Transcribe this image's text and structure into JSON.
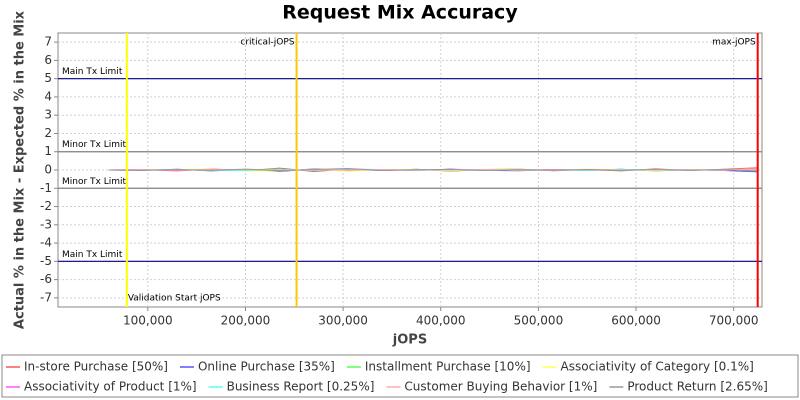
{
  "chart_data": {
    "type": "line",
    "title": "Request Mix Accuracy",
    "x_label": "jOPS",
    "y_label": "Actual % in the Mix - Expected % in the Mix",
    "xlim": [
      8000,
      729000
    ],
    "ylim": [
      -7.5,
      7.5
    ],
    "xticks": [
      {
        "value": 100000,
        "label": "100,000"
      },
      {
        "value": 200000,
        "label": "200,000"
      },
      {
        "value": 300000,
        "label": "300,000"
      },
      {
        "value": 400000,
        "label": "400,000"
      },
      {
        "value": 500000,
        "label": "500,000"
      },
      {
        "value": 600000,
        "label": "600,000"
      },
      {
        "value": 700000,
        "label": "700,000"
      }
    ],
    "yticks": [
      -7,
      -6,
      -5,
      -4,
      -3,
      -2,
      -1,
      0,
      1,
      2,
      3,
      4,
      5,
      6,
      7
    ],
    "grid": true,
    "x": [
      60000,
      95000,
      130000,
      165000,
      200000,
      235000,
      270000,
      305000,
      340000,
      375000,
      410000,
      445000,
      480000,
      515000,
      550000,
      585000,
      620000,
      655000,
      690000,
      725000
    ],
    "series": [
      {
        "name": "In-store Purchase [50%]",
        "color": "#ff5555",
        "values": [
          0.0,
          0.02,
          -0.05,
          0.06,
          -0.04,
          0.1,
          -0.08,
          0.05,
          -0.03,
          0.04,
          -0.06,
          0.03,
          0.05,
          -0.04,
          0.02,
          -0.05,
          0.06,
          -0.03,
          0.04,
          0.12
        ]
      },
      {
        "name": "Online Purchase [35%]",
        "color": "#5555ff",
        "values": [
          0.0,
          -0.02,
          0.04,
          -0.05,
          0.03,
          -0.08,
          0.06,
          -0.04,
          0.03,
          -0.03,
          0.05,
          -0.02,
          -0.04,
          0.03,
          -0.02,
          0.04,
          -0.05,
          0.02,
          -0.03,
          -0.1
        ]
      },
      {
        "name": "Installment Purchase [10%]",
        "color": "#55ff55",
        "values": [
          0.0,
          0.01,
          0.02,
          -0.03,
          0.02,
          0.04,
          -0.03,
          0.02,
          -0.02,
          0.02,
          -0.01,
          0.02,
          -0.02,
          0.01,
          0.02,
          -0.02,
          0.01,
          0.02,
          -0.01,
          0.03
        ]
      },
      {
        "name": "Associativity of Category [0.1%]",
        "color": "#ffff55",
        "values": [
          0.0,
          0.0,
          0.03,
          0.05,
          -0.06,
          -0.05,
          0.04,
          -0.07,
          0.02,
          0.03,
          -0.04,
          0.02,
          0.04,
          -0.03,
          0.05,
          0.02,
          -0.04,
          0.03,
          0.02,
          0.05
        ]
      },
      {
        "name": "Associativity of Product [1%]",
        "color": "#ff55ff",
        "values": [
          0.0,
          0.01,
          -0.02,
          0.02,
          0.03,
          -0.02,
          0.02,
          0.03,
          -0.02,
          -0.01,
          0.02,
          -0.02,
          0.01,
          0.02,
          -0.02,
          0.01,
          0.02,
          -0.01,
          0.02,
          -0.03
        ]
      },
      {
        "name": "Business Report [0.25%]",
        "color": "#55ffff",
        "values": [
          0.0,
          -0.01,
          0.02,
          -0.02,
          -0.03,
          0.02,
          -0.02,
          0.06,
          0.02,
          -0.02,
          0.01,
          -0.03,
          0.02,
          -0.01,
          -0.02,
          0.03,
          0.01,
          -0.02,
          0.02,
          -0.04
        ]
      },
      {
        "name": "Customer Buying Behavior [1%]",
        "color": "#ffaaaa",
        "values": [
          0.0,
          0.02,
          -0.01,
          0.02,
          0.02,
          -0.03,
          0.02,
          -0.02,
          0.03,
          -0.01,
          0.02,
          0.03,
          -0.02,
          0.01,
          0.03,
          -0.01,
          0.02,
          0.03,
          -0.02,
          0.06
        ]
      },
      {
        "name": "Product Return [2.65%]",
        "color": "#999999",
        "values": [
          0.0,
          -0.02,
          0.03,
          -0.02,
          0.05,
          -0.04,
          0.03,
          0.08,
          -0.03,
          0.02,
          0.03,
          -0.03,
          0.02,
          -0.02,
          0.03,
          -0.02,
          0.03,
          -0.02,
          0.03,
          -0.06
        ]
      }
    ],
    "x_markers": [
      {
        "label": "Validation Start jOPS",
        "value": 78500,
        "color": "#ffff00"
      },
      {
        "label": "critical-jOPS",
        "value": 252300,
        "color": "#ffc800"
      },
      {
        "label": "max-jOPS",
        "value": 724600,
        "color": "#ff0000"
      }
    ],
    "y_markers": [
      {
        "label": "Main Tx Limit",
        "value": 5,
        "color": "#000080"
      },
      {
        "label": "Minor Tx Limit",
        "value": 1,
        "color": "#808080"
      },
      {
        "label": "Minor Tx Limit",
        "value": -1,
        "color": "#808080"
      },
      {
        "label": "Main Tx Limit",
        "value": -5,
        "color": "#000080"
      }
    ]
  }
}
